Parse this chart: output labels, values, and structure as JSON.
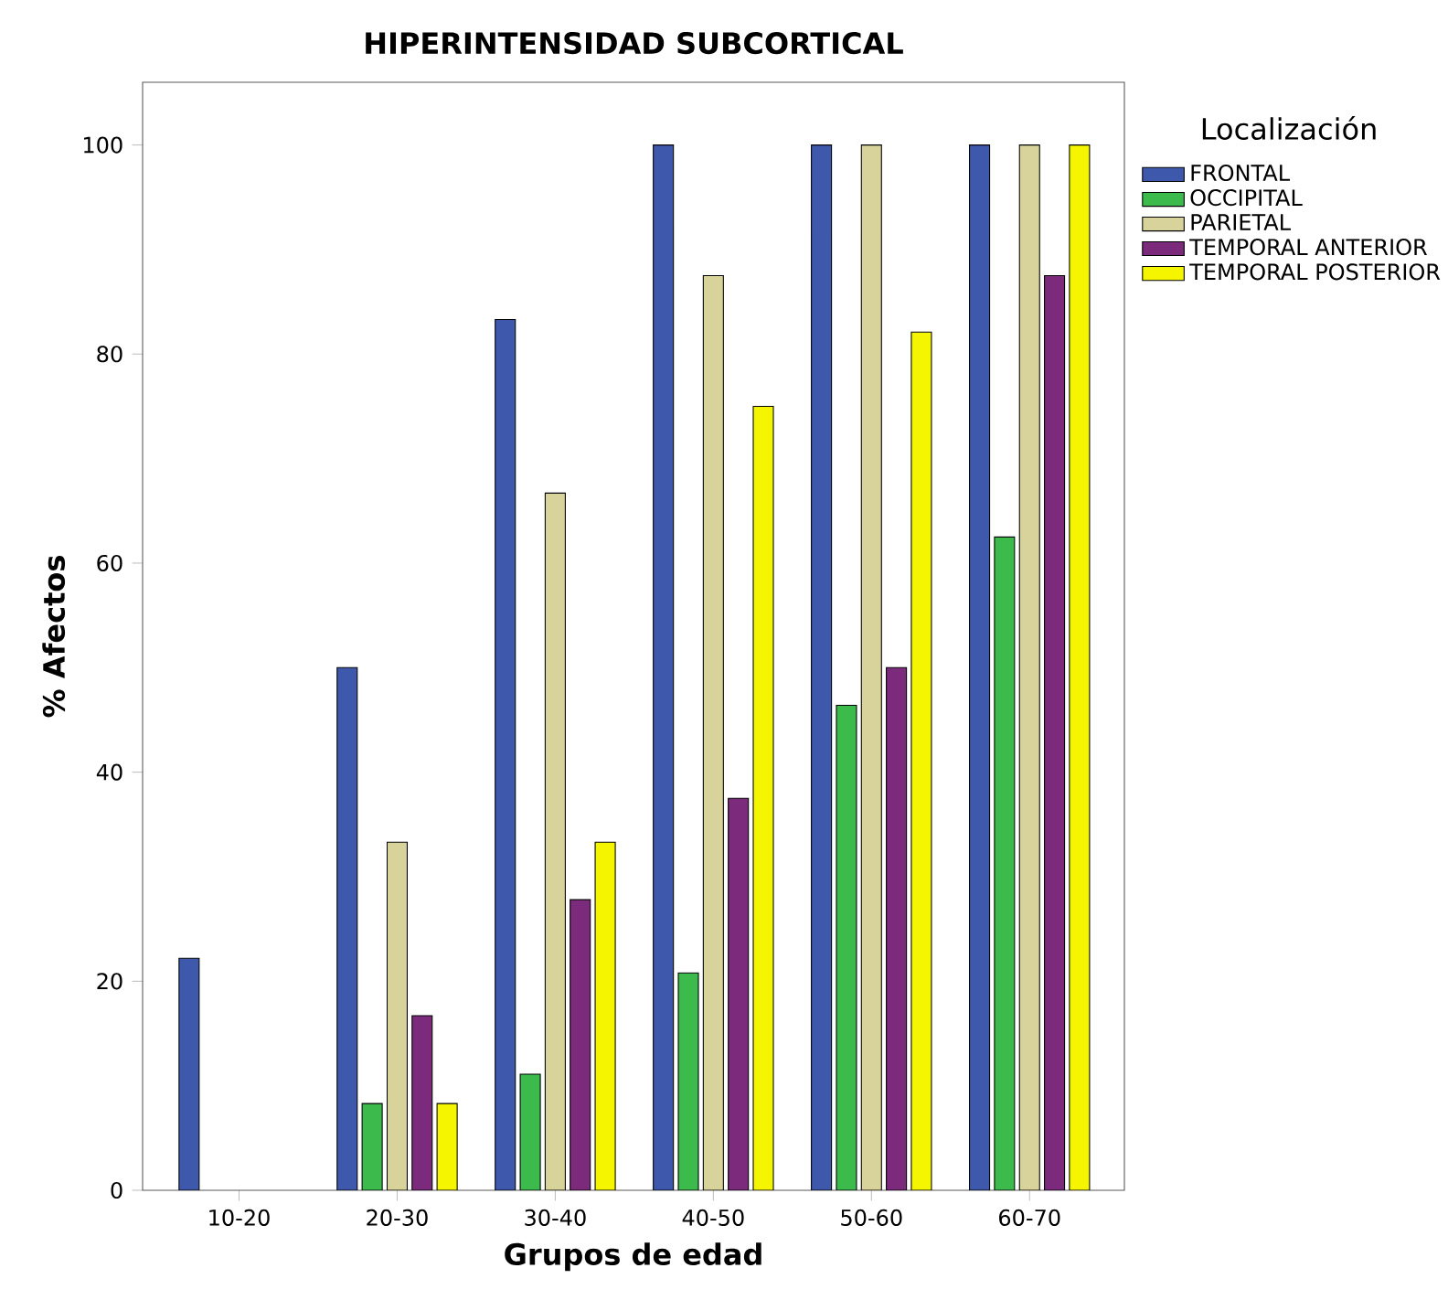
{
  "chart_data": {
    "type": "bar",
    "title": "HIPERINTENSIDAD SUBCORTICAL",
    "xlabel": "Grupos de edad",
    "ylabel": "% Afectos",
    "legend_title": "Localización",
    "categories": [
      "10-20",
      "20-30",
      "30-40",
      "40-50",
      "50-60",
      "60-70"
    ],
    "series": [
      {
        "name": "FRONTAL",
        "color": "#3e58ac",
        "values": [
          22.2,
          50,
          83.3,
          100,
          100,
          100
        ]
      },
      {
        "name": "OCCIPITAL",
        "color": "#3cba4c",
        "values": [
          null,
          8.3,
          11.1,
          20.8,
          46.4,
          62.5
        ]
      },
      {
        "name": "PARIETAL",
        "color": "#d8d39a",
        "values": [
          null,
          33.3,
          66.7,
          87.5,
          100,
          100
        ]
      },
      {
        "name": "TEMPORAL ANTERIOR",
        "color": "#7b2a7c",
        "values": [
          null,
          16.7,
          27.8,
          37.5,
          50,
          87.5
        ]
      },
      {
        "name": "TEMPORAL POSTERIOR",
        "color": "#f5f500",
        "values": [
          null,
          8.3,
          33.3,
          75,
          82.1,
          100
        ]
      }
    ],
    "ylim": [
      0,
      106
    ],
    "yticks": [
      0,
      20,
      40,
      60,
      80,
      100
    ],
    "grid": false,
    "legend": "right"
  }
}
